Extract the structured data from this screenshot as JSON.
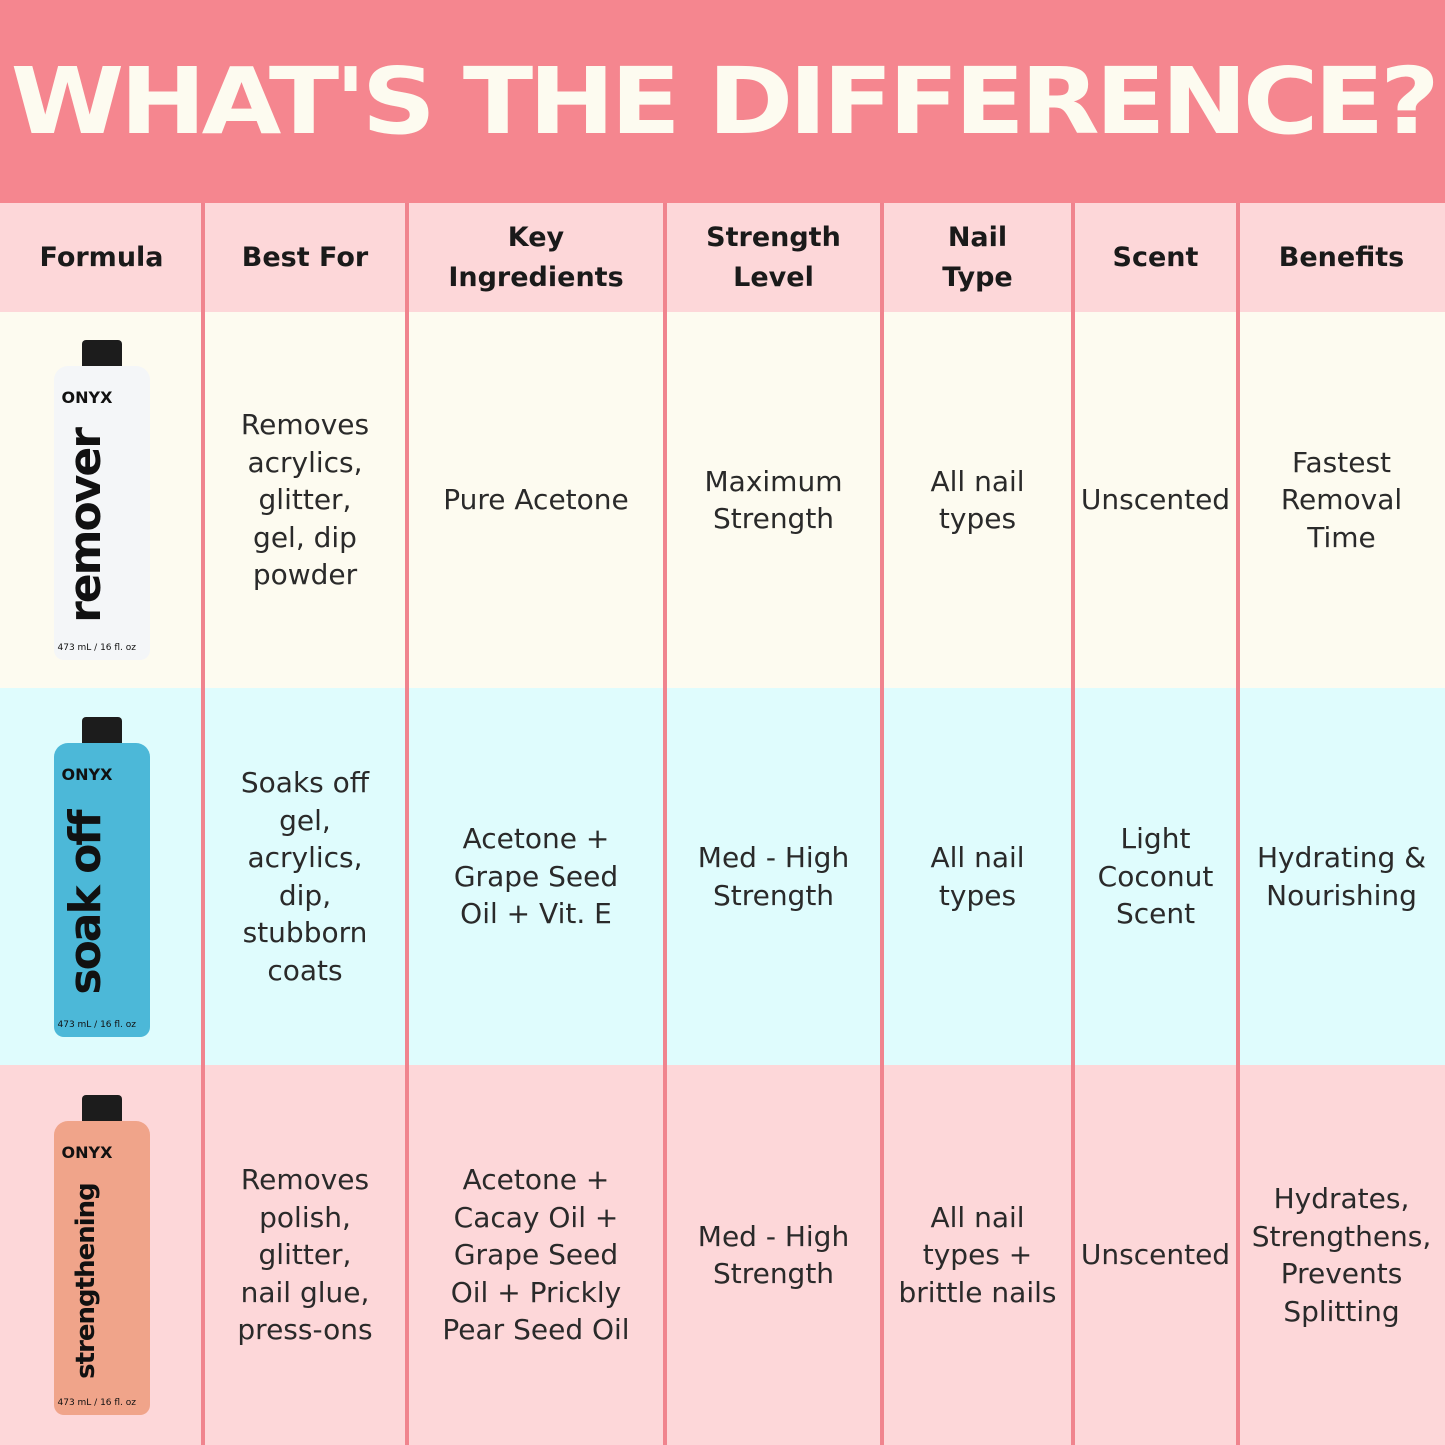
{
  "title": "WHAT'S THE DIFFERENCE?",
  "headers": [
    "Formula",
    "Best For",
    "Key\nIngredients",
    "Strength\nLevel",
    "Nail\nType",
    "Scent",
    "Benefits"
  ],
  "rows": [
    {
      "product": {
        "brand": "ONYX",
        "name": "remover",
        "volume": "473 mL / 16 fl. oz",
        "color": "#f4f6f8"
      },
      "best_for": "Removes acrylics, glitter, gel, dip powder",
      "ingredients": "Pure Acetone",
      "strength": "Maximum Strength",
      "nail_type": "All nail types",
      "scent": "Unscented",
      "benefits": "Fastest Removal Time"
    },
    {
      "product": {
        "brand": "ONYX",
        "name": "soak off",
        "volume": "473 mL / 16 fl. oz",
        "color": "#4cb8d8"
      },
      "best_for": "Soaks off gel, acrylics, dip, stubborn coats",
      "ingredients": "Acetone + Grape Seed Oil + Vit. E",
      "strength": "Med - High Strength",
      "nail_type": "All nail types",
      "scent": "Light Coconut Scent",
      "benefits": "Hydrating & Nourishing"
    },
    {
      "product": {
        "brand": "ONYX",
        "name": "strengthening",
        "volume": "473 mL / 16 fl. oz",
        "color": "#f0a48a"
      },
      "best_for": "Removes polish, glitter, nail glue, press-ons",
      "ingredients": "Acetone + Cacay Oil + Grape Seed Oil + Prickly Pear Seed Oil",
      "strength": "Med - High Strength",
      "nail_type": "All nail types + brittle nails",
      "scent": "Unscented",
      "benefits": "Hydrates, Strengthens, Prevents Splitting"
    }
  ]
}
